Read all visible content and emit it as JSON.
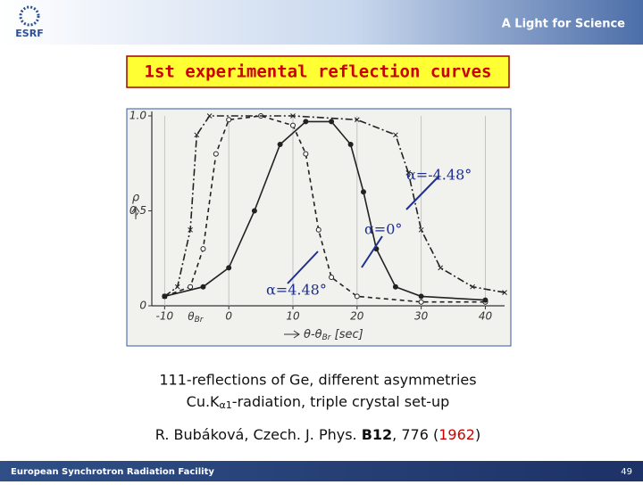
{
  "header": {
    "logo": "ESRF",
    "tagline": "A Light for Science"
  },
  "title": "1st experimental reflection curves",
  "chart_data": {
    "type": "line",
    "xlim": [
      -12,
      43
    ],
    "ylim": [
      0,
      1
    ],
    "xticks": [
      -10,
      0,
      10,
      20,
      30,
      40
    ],
    "yticks": [
      0,
      {
        "value": 0.5,
        "label": "0,5"
      },
      {
        "value": 1,
        "label": "1.0"
      }
    ],
    "y_label": "ρ",
    "x_label": [
      "θ-θ",
      "Br",
      " [sec]"
    ],
    "bragg_label": [
      "θ",
      "Br"
    ],
    "grid": true,
    "series": [
      {
        "name": "α=4.48°",
        "color": "#222222",
        "dash": "5,4",
        "x": [
          -10,
          -6,
          -4,
          -2,
          0,
          5,
          10,
          12,
          14,
          16,
          20,
          30,
          40
        ],
        "values": [
          0.05,
          0.1,
          0.3,
          0.8,
          0.98,
          1.0,
          0.95,
          0.8,
          0.4,
          0.15,
          0.05,
          0.02,
          0.02
        ]
      },
      {
        "name": "α=0°",
        "color": "#222222",
        "dash": "none",
        "x": [
          -10,
          -4,
          0,
          4,
          8,
          12,
          16,
          19,
          21,
          23,
          26,
          30,
          40
        ],
        "values": [
          0.05,
          0.1,
          0.2,
          0.5,
          0.85,
          0.97,
          0.97,
          0.85,
          0.6,
          0.3,
          0.1,
          0.05,
          0.03
        ]
      },
      {
        "name": "α=-4.48°",
        "color": "#222222",
        "dash": "8,3,2,3",
        "x": [
          -10,
          -8,
          -6,
          -5,
          -3,
          10,
          20,
          26,
          28,
          30,
          33,
          38,
          43
        ],
        "values": [
          0.05,
          0.1,
          0.4,
          0.9,
          1.0,
          1.0,
          0.98,
          0.9,
          0.7,
          0.4,
          0.2,
          0.1,
          0.07
        ]
      }
    ]
  },
  "caption": {
    "line1": "111-reflections of Ge, different asymmetries",
    "line2": [
      "Cu.K",
      "α1",
      "-radiation, triple crystal set-up"
    ]
  },
  "citation": [
    "R. Bubáková, Czech. J. Phys. ",
    "B12",
    ", 776 (",
    "1962",
    ")"
  ],
  "footer": {
    "text": "European Synchrotron Radiation Facility",
    "page": "49"
  }
}
